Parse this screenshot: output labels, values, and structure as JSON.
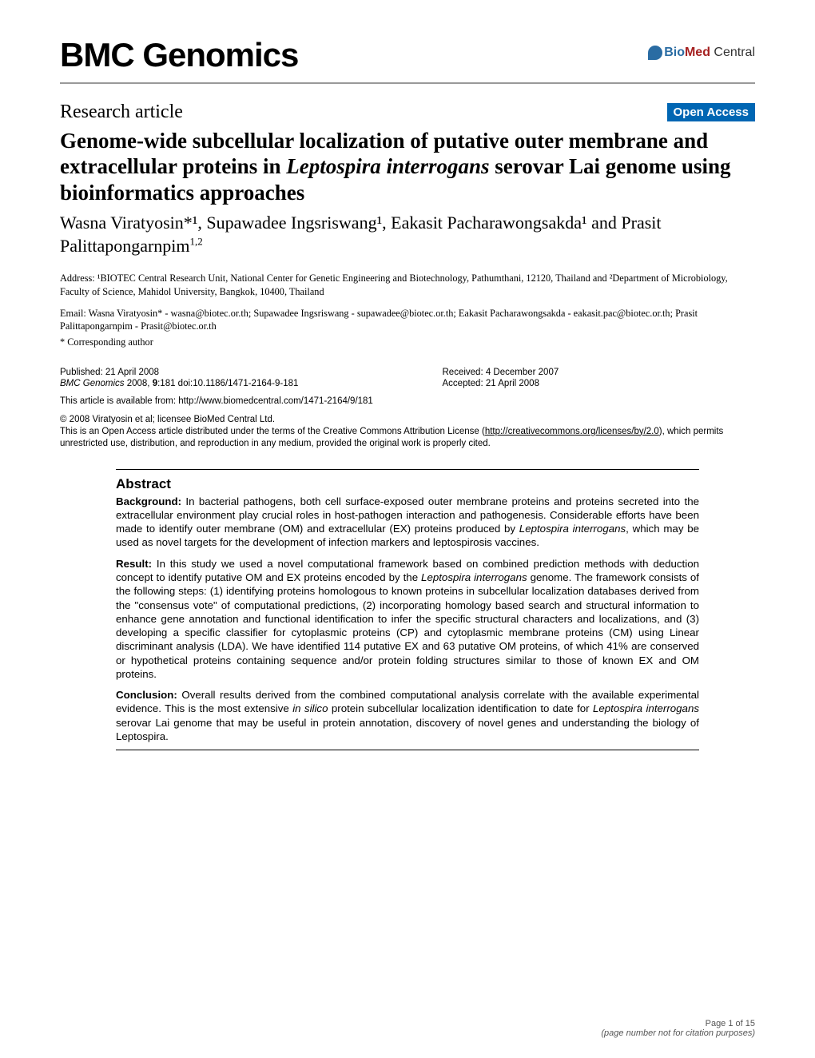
{
  "journal": "BMC Genomics",
  "publisher": {
    "bio": "Bio",
    "med": "Med",
    "central": " Central"
  },
  "article_type": "Research article",
  "open_access": "Open Access",
  "title_parts": {
    "pre": "Genome-wide subcellular localization of putative outer membrane and extracellular proteins in ",
    "ital": "Leptospira interrogans",
    "post": " serovar Lai genome using bioinformatics approaches"
  },
  "authors_html": "Wasna Viratyosin*¹, Supawadee Ingsriswang¹, Eakasit Pacharawongsakda¹ and Prasit Palittapongarnpim",
  "authors_last_sup": "1,2",
  "affiliations": "Address: ¹BIOTEC Central Research Unit, National Center for Genetic Engineering and Biotechnology, Pathumthani, 12120, Thailand and ²Department of Microbiology, Faculty of Science, Mahidol University, Bangkok, 10400, Thailand",
  "emails": "Email: Wasna Viratyosin* - wasna@biotec.or.th; Supawadee Ingsriswang - supawadee@biotec.or.th; Eakasit Pacharawongsakda - eakasit.pac@biotec.or.th; Prasit Palittapongarnpim - Prasit@biotec.or.th",
  "corresponding": "* Corresponding author",
  "dates": {
    "published": "Published: 21 April 2008",
    "received": "Received: 4 December 2007",
    "accepted": "Accepted: 21 April 2008"
  },
  "citation": {
    "journal_ital": "BMC Genomics",
    "rest": " 2008, ",
    "vol": "9",
    "pages": ":181    doi:10.1186/1471-2164-9-181"
  },
  "article_url_label": "This article is available from: http://www.biomedcentral.com/1471-2164/9/181",
  "copyright": {
    "line1": "© 2008 Viratyosin et al; licensee BioMed Central Ltd.",
    "line2_pre": "This is an Open Access article distributed under the terms of the Creative Commons Attribution License (",
    "line2_link": "http://creativecommons.org/licenses/by/2.0",
    "line2_post": "), which permits unrestricted use, distribution, and reproduction in any medium, provided the original work is properly cited."
  },
  "abstract": {
    "heading": "Abstract",
    "background_label": "Background:",
    "background_text": " In bacterial pathogens, both cell surface-exposed outer membrane proteins and proteins secreted into the extracellular environment play crucial roles in host-pathogen interaction and pathogenesis. Considerable efforts have been made to identify outer membrane (OM) and extracellular (EX) proteins produced by ",
    "background_ital": "Leptospira interrogans",
    "background_post": ", which may be used as novel targets for the development of infection markers and leptospirosis vaccines.",
    "result_label": "Result:",
    "result_text": " In this study we used a novel computational framework based on combined prediction methods with deduction concept to identify putative OM and EX proteins encoded by the ",
    "result_ital": "Leptospira interrogans",
    "result_post": " genome. The framework consists of the following steps: (1) identifying proteins homologous to known proteins in subcellular localization databases derived from the \"consensus vote\" of computational predictions, (2) incorporating homology based search and structural information to enhance gene annotation and functional identification to infer the specific structural characters and localizations, and (3) developing a specific classifier for cytoplasmic proteins (CP) and cytoplasmic membrane proteins (CM) using Linear discriminant analysis (LDA). We have identified 114 putative EX and 63 putative OM proteins, of which 41% are conserved or hypothetical proteins containing sequence and/or protein folding structures similar to those of known EX and OM proteins.",
    "conclusion_label": "Conclusion:",
    "conclusion_text": " Overall results derived from the combined computational analysis correlate with the available experimental evidence. This is the most extensive ",
    "conclusion_ital1": "in silico",
    "conclusion_mid": " protein subcellular localization identification to date for ",
    "conclusion_ital2": "Leptospira interrogans",
    "conclusion_post": " serovar Lai genome that may be useful in protein annotation, discovery of novel genes and understanding the biology of Leptospira."
  },
  "footer": {
    "page": "Page 1 of 15",
    "note": "(page number not for citation purposes)"
  },
  "colors": {
    "open_access_bg": "#0066b3",
    "rule": "#999999",
    "bio": "#2a6ca3",
    "med": "#a52020"
  },
  "typography": {
    "journal_logo_pt": 42,
    "title_pt": 27,
    "authors_pt": 22,
    "body_small_pt": 12.3,
    "meta_pt": 11.5,
    "abstract_heading_pt": 17,
    "abstract_body_pt": 13.3,
    "footer_pt": 11
  }
}
